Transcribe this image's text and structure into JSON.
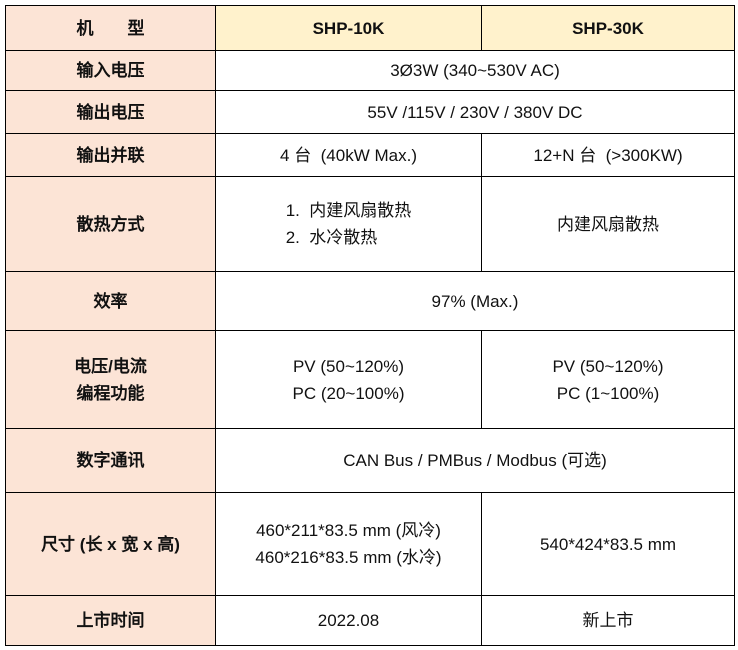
{
  "colors": {
    "label_column": "#FCE4D6",
    "header_row": "#FFF2CC",
    "border": "#000000"
  },
  "header": {
    "label": "机　　型",
    "models": [
      "SHP-10K",
      "SHP-30K"
    ]
  },
  "rows": {
    "input_voltage": {
      "label": "输入电压",
      "value": "3Ø3W (340~530V AC)"
    },
    "output_voltage": {
      "label": "输出电压",
      "value": "55V /115V / 230V / 380V DC"
    },
    "parallel": {
      "label": "输出并联",
      "shp10k": "4 台  (40kW Max.)",
      "shp30k": "12+N 台  (>300KW)"
    },
    "cooling": {
      "label": "散热方式",
      "shp10k": [
        "1.  内建风扇散热",
        "2.  水冷散热"
      ],
      "shp30k": "内建风扇散热"
    },
    "efficiency": {
      "label": "效率",
      "value": "97% (Max.)"
    },
    "programming": {
      "label": [
        "电压/电流",
        "编程功能"
      ],
      "shp10k": [
        "PV (50~120%)",
        "PC (20~100%)"
      ],
      "shp30k": [
        "PV (50~120%)",
        "PC (1~100%)"
      ]
    },
    "communication": {
      "label": "数字通讯",
      "value": "CAN Bus / PMBus / Modbus (可选)"
    },
    "dimensions": {
      "label": "尺寸 (长 x 宽 x 高)",
      "shp10k": [
        "460*211*83.5 mm (风冷)",
        "460*216*83.5 mm (水冷)"
      ],
      "shp30k": "540*424*83.5 mm"
    },
    "launch": {
      "label": "上市时间",
      "shp10k": "2022.08",
      "shp30k": "新上市"
    }
  }
}
